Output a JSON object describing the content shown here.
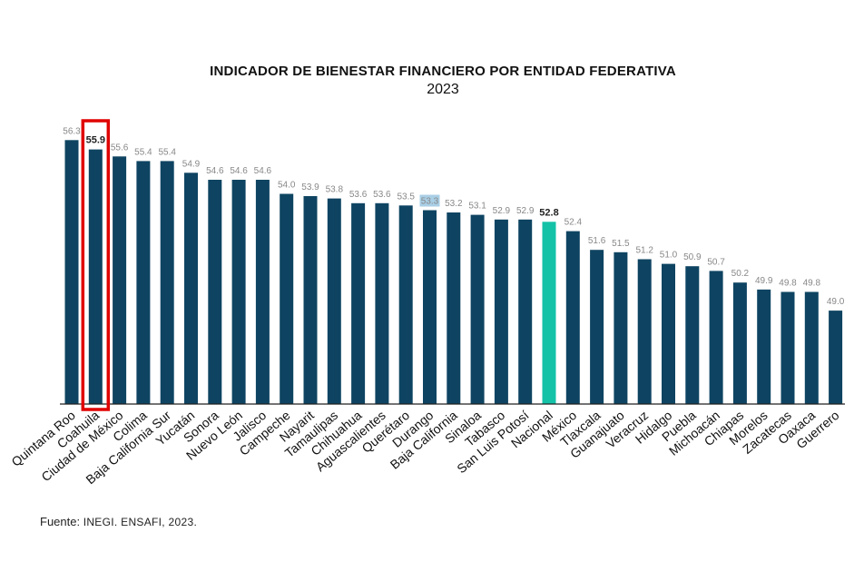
{
  "chart_data": {
    "type": "bar",
    "title": "INDICADOR DE BIENESTAR FINANCIERO POR ENTIDAD FEDERATIVA",
    "subtitle": "2023",
    "categories": [
      "Quintana Roo",
      "Coahuila",
      "Ciudad de México",
      "Colima",
      "Baja California Sur",
      "Yucatán",
      "Sonora",
      "Nuevo León",
      "Jalisco",
      "Campeche",
      "Nayarit",
      "Tamaulipas",
      "Chihuahua",
      "Aguascalientes",
      "Querétaro",
      "Durango",
      "Baja California",
      "Sinaloa",
      "Tabasco",
      "San Luis Potosí",
      "Nacional",
      "México",
      "Tlaxcala",
      "Guanajuato",
      "Veracruz",
      "Hidalgo",
      "Puebla",
      "Michoacán",
      "Chiapas",
      "Morelos",
      "Zacatecas",
      "Oaxaca",
      "Guerrero"
    ],
    "values": [
      56.3,
      55.9,
      55.6,
      55.4,
      55.4,
      54.9,
      54.6,
      54.6,
      54.6,
      54.0,
      53.9,
      53.8,
      53.6,
      53.6,
      53.5,
      53.3,
      53.2,
      53.1,
      52.9,
      52.9,
      52.8,
      52.4,
      51.6,
      51.5,
      51.2,
      51.0,
      50.9,
      50.7,
      50.2,
      49.9,
      49.8,
      49.8,
      49.0
    ],
    "value_labels": [
      "56.3",
      "55.9",
      "55.6",
      "55.4",
      "55.4",
      "54.9",
      "54.6",
      "54.6",
      "54.6",
      "54.0",
      "53.9",
      "53.8",
      "53.6",
      "53.6",
      "53.5",
      "53.3",
      "53.2",
      "53.1",
      "52.9",
      "52.9",
      "52.8",
      "52.4",
      "51.6",
      "51.5",
      "51.2",
      "51.0",
      "50.9",
      "50.7",
      "50.2",
      "49.9",
      "49.8",
      "49.8",
      "49.0"
    ],
    "ylim": [
      45.0,
      56.7
    ],
    "grid": false,
    "legend": "none",
    "xlabel": "",
    "ylabel": "",
    "colors": {
      "bar": "#0e4462",
      "national_bar": "#14c2a8",
      "highlight_box": "#e00000",
      "label": "#888888",
      "label_emphasis": "#222222",
      "durango_label_bg": "#a9cfe6",
      "axis": "#222222"
    },
    "highlight": {
      "category": "Coahuila",
      "style": "red outline box"
    },
    "emphasized_labels": [
      "Coahuila",
      "Nacional"
    ],
    "shaded_label": "Durango"
  },
  "source": {
    "prefix": "Fuente: ",
    "text": "INEGI. ENSAFI, 2023."
  }
}
